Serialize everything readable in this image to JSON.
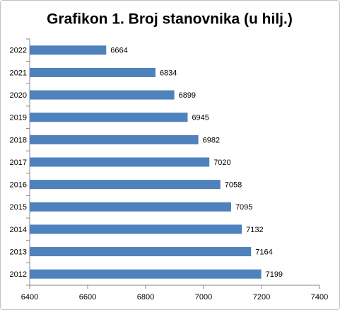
{
  "chart_data": {
    "type": "hbar",
    "title": "Grafikon 1. Broj stanovnika (u hilj.)",
    "categories": [
      "2022",
      "2021",
      "2020",
      "2019",
      "2018",
      "2017",
      "2016",
      "2015",
      "2014",
      "2013",
      "2012"
    ],
    "values": [
      6664,
      6834,
      6899,
      6945,
      6982,
      7020,
      7058,
      7095,
      7132,
      7164,
      7199
    ],
    "color": "#4f81bd",
    "xlim": [
      6400,
      7400
    ],
    "xticks": [
      6400,
      6600,
      6800,
      7000,
      7200,
      7400
    ],
    "grid": false
  }
}
